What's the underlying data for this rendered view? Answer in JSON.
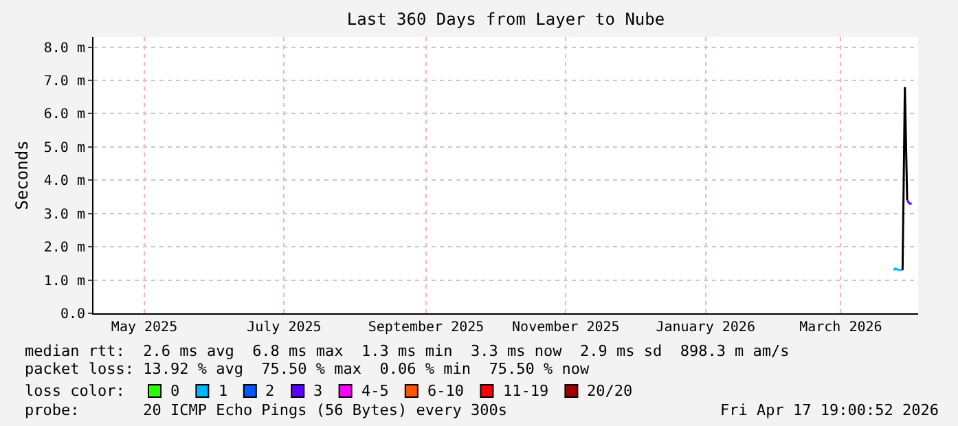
{
  "chart_data": {
    "type": "line",
    "title": "Last 360 Days from Layer to Nube",
    "ylabel": "Seconds",
    "xlim": [
      "2025-04-22T19:00",
      "2026-04-17T19:00"
    ],
    "xticks": [
      {
        "value": "2025-05-15",
        "label": "May 2025"
      },
      {
        "value": "2025-07-15",
        "label": "July 2025"
      },
      {
        "value": "2025-09-15",
        "label": "September 2025"
      },
      {
        "value": "2025-11-15",
        "label": "November 2025"
      },
      {
        "value": "2026-01-15",
        "label": "January 2026"
      },
      {
        "value": "2026-03-15",
        "label": "March 2026"
      }
    ],
    "ylim": [
      0,
      8.3
    ],
    "yticks": [
      {
        "value": 0,
        "label": "0.0"
      },
      {
        "value": 1,
        "label": "1.0 m"
      },
      {
        "value": 2,
        "label": "2.0 m"
      },
      {
        "value": 3,
        "label": "3.0 m"
      },
      {
        "value": 4,
        "label": "4.0 m"
      },
      {
        "value": 5,
        "label": "5.0 m"
      },
      {
        "value": 6,
        "label": "6.0 m"
      },
      {
        "value": 7,
        "label": "7.0 m"
      },
      {
        "value": 8,
        "label": "8.0 m"
      }
    ],
    "grid": true,
    "legend": "bottom",
    "legend_title": "loss color:",
    "series": [
      {
        "name": "0",
        "color": "#26ff00"
      },
      {
        "name": "1",
        "color": "#00b8ff",
        "x": [
          "2026-04-07",
          "2026-04-08",
          "2026-04-09",
          "2026-04-10",
          "2026-04-11"
        ],
        "values": [
          1.3,
          1.35,
          1.3,
          1.3,
          1.3
        ]
      },
      {
        "name": "2",
        "color": "#0059ff"
      },
      {
        "name": "3",
        "color": "#5e00ff",
        "x": [
          "2026-04-13",
          "2026-04-14",
          "2026-04-15"
        ],
        "values": [
          3.4,
          3.3,
          3.3
        ]
      },
      {
        "name": "4-5",
        "color": "#ff00ff"
      },
      {
        "name": "6-10",
        "color": "#ff5500"
      },
      {
        "name": "11-19",
        "color": "#ff0000"
      },
      {
        "name": "20/20",
        "color": "#a10000"
      },
      {
        "color": "#000000",
        "x": [
          "2026-04-11",
          "2026-04-12",
          "2026-04-13"
        ],
        "values": [
          1.3,
          6.8,
          3.4
        ]
      }
    ],
    "annotations": [
      "median rtt:  2.6 ms avg  6.8 ms max  1.3 ms min  3.3 ms now  2.9 ms sd  898.3 m am/s",
      "packet loss: 13.92 % avg  75.50 % max  0.06 % min  75.50 % now",
      "probe:       20 ICMP Echo Pings (56 Bytes) every 300s",
      "Fri Apr 17 19:00:52 2026"
    ]
  }
}
